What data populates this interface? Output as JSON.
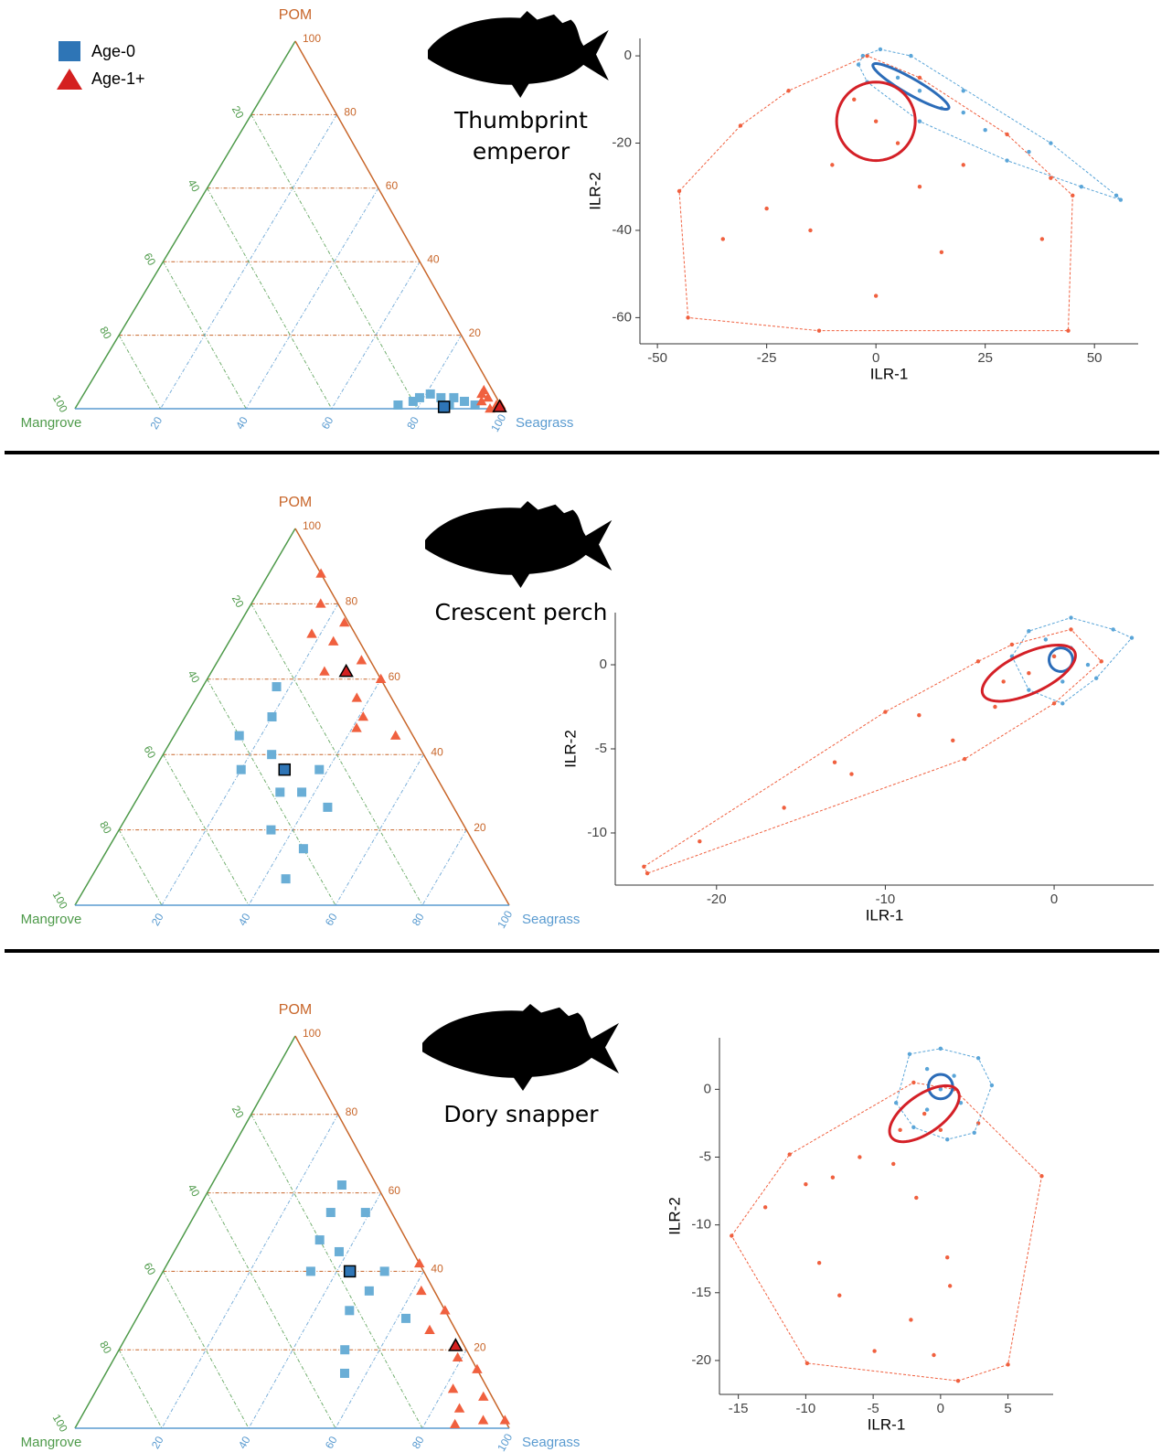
{
  "chart_data": [
    {
      "type": "ternary",
      "title": "Thumbprint emperor",
      "top_label": "POM",
      "left_label": "Mangrove",
      "right_label": "Seagrass",
      "top_color": "#c8662a",
      "left_color": "#4e9a4a",
      "right_color": "#5a9bd0",
      "pom_ticks": [
        20,
        40,
        60,
        80,
        100
      ],
      "mangrove_ticks": [
        20,
        40,
        60,
        80,
        100
      ],
      "seagrass_ticks": [
        20,
        40,
        60,
        80,
        100
      ],
      "series": [
        {
          "name": "Age-0",
          "marker": "square",
          "color": "#6aaed6",
          "mean_color": "#2e75b6",
          "mangrove": [
            24,
            18,
            15,
            13,
            10,
            12,
            8,
            14,
            6,
            20
          ],
          "pom": [
            1,
            3,
            4,
            3,
            3,
            1,
            2,
            0,
            1,
            2
          ],
          "seagrass": [
            75,
            79,
            81,
            84,
            87,
            87,
            90,
            86,
            93,
            78
          ],
          "mean": [
            13.5,
            0.5,
            86
          ]
        },
        {
          "name": "Age-1+",
          "marker": "triangle",
          "color": "#f0603f",
          "mean_color": "#d42020",
          "mangrove": [
            4,
            3,
            2,
            1,
            3,
            0,
            2
          ],
          "pom": [
            2,
            4,
            3,
            1,
            0,
            1,
            5
          ],
          "seagrass": [
            94,
            93,
            95,
            98,
            97,
            99,
            93
          ],
          "mean": [
            0.5,
            0.5,
            99
          ]
        }
      ]
    },
    {
      "type": "scatter",
      "xlabel": "ILR-1",
      "ylabel": "ILR-2",
      "xlim": [
        -54,
        60
      ],
      "ylim": [
        -66,
        4
      ],
      "xticks": [
        -50,
        -25,
        0,
        25,
        50
      ],
      "yticks": [
        0,
        -20,
        -40,
        -60
      ],
      "series": [
        {
          "color": "#5aa5d8",
          "ellipse_color": "#2b6cb8",
          "x": [
            -3,
            1,
            8,
            20,
            40,
            55,
            56,
            47,
            30,
            10,
            -2,
            -4,
            5,
            15,
            25,
            10,
            20,
            35
          ],
          "y": [
            0,
            1.5,
            0,
            -8,
            -20,
            -32,
            -33,
            -30,
            -24,
            -15,
            -6,
            -2,
            -5,
            -12,
            -17,
            -8,
            -13,
            -22
          ],
          "ellipse": [
            8,
            -7,
            10,
            1.8,
            -30
          ]
        },
        {
          "color": "#f0603f",
          "ellipse_color": "#d42027",
          "x": [
            -45,
            -43,
            -13,
            44,
            45,
            40,
            30,
            10,
            -2,
            -20,
            -31,
            0,
            -5,
            5,
            -10,
            10,
            -15,
            15,
            0,
            20,
            -25,
            38,
            -35
          ],
          "y": [
            -31,
            -60,
            -63,
            -63,
            -32,
            -28,
            -18,
            -5,
            0,
            -8,
            -16,
            -15,
            -10,
            -20,
            -25,
            -30,
            -40,
            -45,
            -55,
            -25,
            -35,
            -42,
            -42
          ],
          "ellipse": [
            0,
            -15,
            9,
            9,
            0
          ]
        }
      ]
    },
    {
      "type": "ternary",
      "title": "Crescent perch",
      "top_label": "POM",
      "left_label": "Mangrove",
      "right_label": "Seagrass",
      "top_color": "#c8662a",
      "left_color": "#4e9a4a",
      "right_color": "#5a9bd0",
      "pom_ticks": [
        20,
        40,
        60,
        80,
        100
      ],
      "mangrove_ticks": [
        20,
        40,
        60,
        80,
        100
      ],
      "seagrass_ticks": [
        20,
        40,
        60,
        80,
        100
      ],
      "series": [
        {
          "marker": "square",
          "color": "#6aaed6",
          "mean_color": "#2e75b6",
          "mangrove": [
            25,
            30,
            40,
            44,
            26,
            29,
            45,
            40,
            48,
            35,
            33,
            38
          ],
          "pom": [
            58,
            50,
            45,
            36,
            36,
            26,
            20,
            15,
            7,
            40,
            30,
            30
          ],
          "seagrass": [
            17,
            20,
            15,
            20,
            38,
            45,
            35,
            45,
            45,
            25,
            37,
            32
          ],
          "mean": [
            34,
            36,
            30
          ]
        },
        {
          "marker": "triangle",
          "color": "#f0603f",
          "mean_color": "#d42020",
          "mangrove": [
            0,
            4,
            10,
            12,
            2,
            0,
            8,
            4,
            12,
            6,
            1,
            9
          ],
          "pom": [
            88,
            80,
            72,
            62,
            65,
            60,
            55,
            45,
            47,
            70,
            75,
            50
          ],
          "seagrass": [
            12,
            16,
            18,
            26,
            33,
            40,
            37,
            51,
            41,
            24,
            24,
            41
          ],
          "mean": [
            7,
            62,
            31
          ]
        }
      ]
    },
    {
      "type": "scatter",
      "xlabel": "ILR-1",
      "ylabel": "ILR-2",
      "xlim": [
        -26,
        5.9
      ],
      "ylim": [
        -13.1,
        3.1
      ],
      "xticks": [
        -20,
        -10,
        0
      ],
      "yticks": [
        0,
        -5,
        -10
      ],
      "series": [
        {
          "color": "#5aa5d8",
          "ellipse_color": "#2b6cb8",
          "x": [
            -1.5,
            1,
            3.5,
            4.6,
            2.5,
            0.5,
            -1.5,
            -2.5,
            0,
            1,
            2,
            0.5,
            -0.5
          ],
          "y": [
            2,
            2.8,
            2.1,
            1.6,
            -0.8,
            -2.3,
            -1.5,
            0.5,
            0.5,
            1,
            0,
            -1,
            1.5
          ],
          "ellipse": [
            0.4,
            0.3,
            0.7,
            0.7,
            0
          ]
        },
        {
          "color": "#f0603f",
          "ellipse_color": "#d42027",
          "x": [
            -24.3,
            -24.1,
            -5.3,
            0,
            2.8,
            1,
            -2.5,
            -4.5,
            -10,
            -1.5,
            -3,
            0,
            -8,
            -13,
            -16,
            -21,
            -6,
            -3.5,
            -12
          ],
          "y": [
            -12,
            -12.4,
            -5.6,
            -2.3,
            0.2,
            2.1,
            1.2,
            0.2,
            -2.8,
            -0.5,
            -1,
            0.5,
            -3,
            -5.8,
            -8.5,
            -10.5,
            -4.5,
            -2.5,
            -6.5
          ],
          "ellipse": [
            -1.5,
            -0.5,
            3,
            1.2,
            25
          ]
        }
      ]
    },
    {
      "type": "ternary",
      "title": "Dory snapper",
      "top_label": "POM",
      "left_label": "Mangrove",
      "right_label": "Seagrass",
      "top_color": "#c8662a",
      "left_color": "#4e9a4a",
      "right_color": "#5a9bd0",
      "pom_ticks": [
        20,
        40,
        60,
        80,
        100
      ],
      "mangrove_ticks": [
        20,
        40,
        60,
        80,
        100
      ],
      "seagrass_ticks": [
        20,
        40,
        60,
        80,
        100
      ],
      "series": [
        {
          "marker": "square",
          "color": "#6aaed6",
          "mean_color": "#2e75b6",
          "mangrove": [
            8,
            14,
            6,
            26,
            9,
            22,
            10,
            28,
            31,
            17,
            15,
            20
          ],
          "pom": [
            62,
            55,
            55,
            40,
            40,
            30,
            28,
            20,
            14,
            45,
            35,
            48
          ],
          "seagrass": [
            30,
            31,
            39,
            34,
            51,
            48,
            62,
            52,
            55,
            38,
            50,
            32
          ],
          "mean": [
            17,
            40,
            43
          ]
        },
        {
          "marker": "triangle",
          "color": "#f0603f",
          "mean_color": "#d42020",
          "mangrove": [
            0,
            3,
            0,
            6,
            0,
            8,
            5,
            12,
            0,
            3,
            2,
            9
          ],
          "pom": [
            42,
            35,
            30,
            25,
            15,
            10,
            2,
            1,
            2,
            18,
            8,
            5
          ],
          "seagrass": [
            58,
            62,
            70,
            69,
            85,
            82,
            93,
            87,
            98,
            79,
            90,
            86
          ],
          "mean": [
            2,
            21,
            77
          ]
        }
      ]
    },
    {
      "type": "scatter",
      "xlabel": "ILR-1",
      "ylabel": "ILR-2",
      "xlim": [
        -16.4,
        8.35
      ],
      "ylim": [
        -22.5,
        3.8
      ],
      "xticks": [
        -15,
        -10,
        -5,
        0,
        5
      ],
      "yticks": [
        0,
        -5,
        -10,
        -15,
        -20
      ],
      "series": [
        {
          "color": "#5aa5d8",
          "ellipse_color": "#2b6cb8",
          "x": [
            -3.3,
            -2.3,
            0,
            2.8,
            3.8,
            2.5,
            0.5,
            -2,
            0,
            1,
            -1,
            1.5,
            -1
          ],
          "y": [
            -1,
            2.6,
            3,
            2.3,
            0.3,
            -3.2,
            -3.7,
            -2.8,
            0,
            1,
            1.5,
            -1,
            -1.5
          ],
          "ellipse": [
            0,
            0.2,
            0.9,
            0.9,
            0
          ]
        },
        {
          "color": "#f0603f",
          "ellipse_color": "#d42027",
          "x": [
            -15.5,
            -9.9,
            1.3,
            5,
            7.5,
            2.8,
            1,
            -2,
            -11.2,
            -1.2,
            -3,
            0,
            -6,
            -10,
            -13,
            -8,
            0.5,
            0.7,
            -2.2,
            -7.5,
            -9,
            -4.9,
            -0.5,
            -3.5,
            -1.8
          ],
          "y": [
            -10.8,
            -20.2,
            -21.5,
            -20.3,
            -6.4,
            -2.5,
            0,
            0.5,
            -4.8,
            -1.8,
            -3,
            -3,
            -5,
            -7,
            -8.7,
            -6.5,
            -12.4,
            -14.5,
            -17,
            -15.2,
            -12.8,
            -19.3,
            -19.6,
            -5.5,
            -8
          ],
          "ellipse": [
            -1.2,
            -1.8,
            3,
            1.4,
            35
          ]
        }
      ]
    }
  ]
}
